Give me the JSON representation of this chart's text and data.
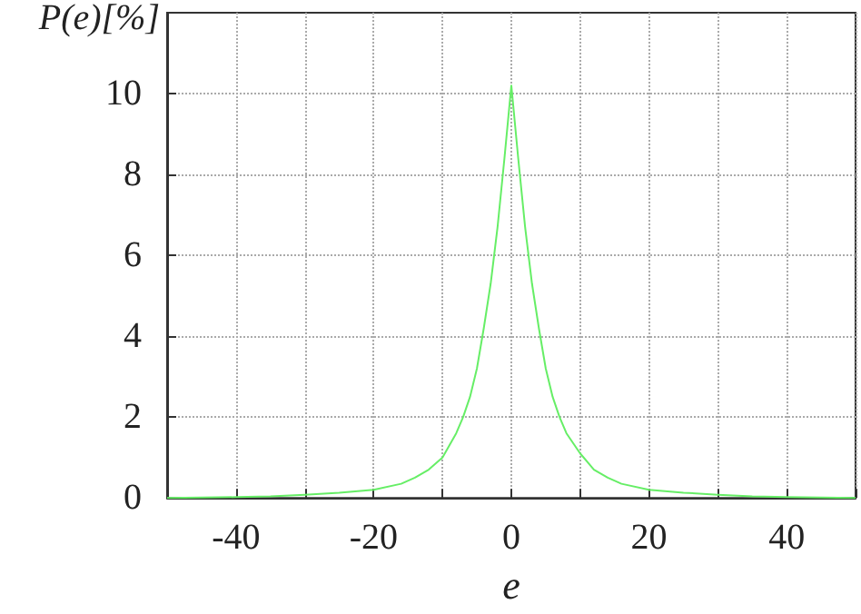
{
  "chart_data": {
    "type": "line",
    "xlabel": "e",
    "ylabel": "P(e)[%]",
    "x": [
      -50,
      -45,
      -40,
      -35,
      -30,
      -25,
      -20,
      -16,
      -14,
      -12,
      -10,
      -8,
      -7,
      -6,
      -5,
      -4,
      -3,
      -2,
      -1,
      0,
      1,
      2,
      3,
      4,
      5,
      6,
      7,
      8,
      10,
      12,
      14,
      16,
      20,
      25,
      30,
      35,
      40,
      45,
      50
    ],
    "series": [
      {
        "color": "#66ee66",
        "values": [
          0,
          0.01,
          0.02,
          0.04,
          0.08,
          0.13,
          0.2,
          0.35,
          0.5,
          0.7,
          1.0,
          1.6,
          2.0,
          2.5,
          3.2,
          4.2,
          5.3,
          6.7,
          8.4,
          10.2,
          8.4,
          6.7,
          5.3,
          4.2,
          3.2,
          2.5,
          2.0,
          1.6,
          1.1,
          0.7,
          0.5,
          0.35,
          0.2,
          0.13,
          0.08,
          0.04,
          0.02,
          0.01,
          0
        ]
      }
    ],
    "xlim": [
      -50,
      50
    ],
    "xticks": [
      {
        "value": -50,
        "label": null
      },
      -40,
      {
        "value": -30,
        "label": null
      },
      -20,
      {
        "value": -10,
        "label": null
      },
      0,
      {
        "value": 10,
        "label": null
      },
      20,
      {
        "value": 30,
        "label": null
      },
      40,
      {
        "value": 50,
        "label": null
      }
    ],
    "ylim": [
      0,
      12
    ],
    "yticks": [
      0,
      2,
      4,
      6,
      8,
      10
    ],
    "grid": true,
    "marker": "none",
    "line_style": "solid"
  }
}
